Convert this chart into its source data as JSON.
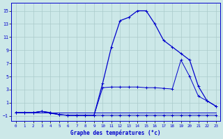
{
  "title": "Graphe des températures (°c)",
  "background_color": "#cce8e8",
  "grid_color": "#aacaca",
  "line_color": "#0000cc",
  "x_ticks": [
    0,
    1,
    2,
    3,
    4,
    5,
    6,
    7,
    8,
    9,
    10,
    11,
    12,
    13,
    14,
    15,
    16,
    17,
    18,
    19,
    20,
    21,
    22,
    23
  ],
  "y_ticks": [
    -1,
    1,
    3,
    5,
    7,
    9,
    11,
    13,
    15
  ],
  "ylim": [
    -1.8,
    16.2
  ],
  "xlim": [
    -0.5,
    23.5
  ],
  "series": {
    "line_flat_x": [
      0,
      1,
      2,
      3,
      4,
      5,
      6,
      7,
      8,
      9,
      10,
      11,
      12,
      13,
      14,
      15,
      16,
      17,
      18,
      19,
      20,
      21,
      22,
      23
    ],
    "line_flat_y": [
      -0.5,
      -0.5,
      -0.5,
      -0.5,
      -0.5,
      -0.5,
      -0.5,
      -0.5,
      -0.5,
      -0.5,
      -0.5,
      -0.5,
      -0.5,
      -0.5,
      -0.5,
      -0.5,
      -0.5,
      -0.5,
      -0.5,
      -0.5,
      -0.5,
      -0.5,
      -0.5,
      -0.5
    ],
    "line_low_x": [
      0,
      1,
      2,
      3,
      4,
      5,
      6,
      7,
      8,
      9,
      10,
      11,
      12,
      13,
      14,
      15,
      16,
      17,
      18,
      19,
      20,
      21,
      22,
      23
    ],
    "line_low_y": [
      -0.5,
      -0.5,
      -0.5,
      -0.3,
      -0.6,
      -0.8,
      -0.9,
      -0.9,
      -0.9,
      -0.9,
      -0.9,
      -0.9,
      -0.9,
      -0.9,
      -0.9,
      -0.9,
      -0.9,
      -0.9,
      -0.9,
      -0.9,
      -0.9,
      -0.9,
      -0.9,
      -0.9
    ],
    "line_mid_x": [
      0,
      1,
      2,
      3,
      4,
      5,
      6,
      7,
      8,
      9,
      10,
      11,
      12,
      13,
      14,
      15,
      16,
      17,
      18,
      19,
      20,
      21,
      22,
      23
    ],
    "line_mid_y": [
      -0.5,
      -0.5,
      -0.5,
      -0.3,
      -0.5,
      -0.8,
      -0.9,
      -0.9,
      -0.9,
      -0.9,
      3.3,
      3.4,
      3.4,
      3.4,
      3.4,
      3.3,
      3.3,
      3.2,
      3.1,
      7.5,
      5.0,
      2.0,
      1.3,
      0.5
    ],
    "line_peak_x": [
      0,
      1,
      2,
      3,
      4,
      5,
      6,
      7,
      8,
      9,
      10,
      11,
      12,
      13,
      14,
      15,
      16,
      17,
      18,
      19,
      20,
      21,
      22,
      23
    ],
    "line_peak_y": [
      -0.5,
      -0.5,
      -0.5,
      -0.3,
      -0.5,
      -0.8,
      -0.9,
      -0.9,
      -0.9,
      -0.9,
      4.0,
      9.5,
      13.5,
      14.0,
      15.0,
      15.0,
      13.0,
      10.5,
      9.5,
      8.5,
      7.5,
      3.5,
      1.3,
      0.5
    ]
  }
}
